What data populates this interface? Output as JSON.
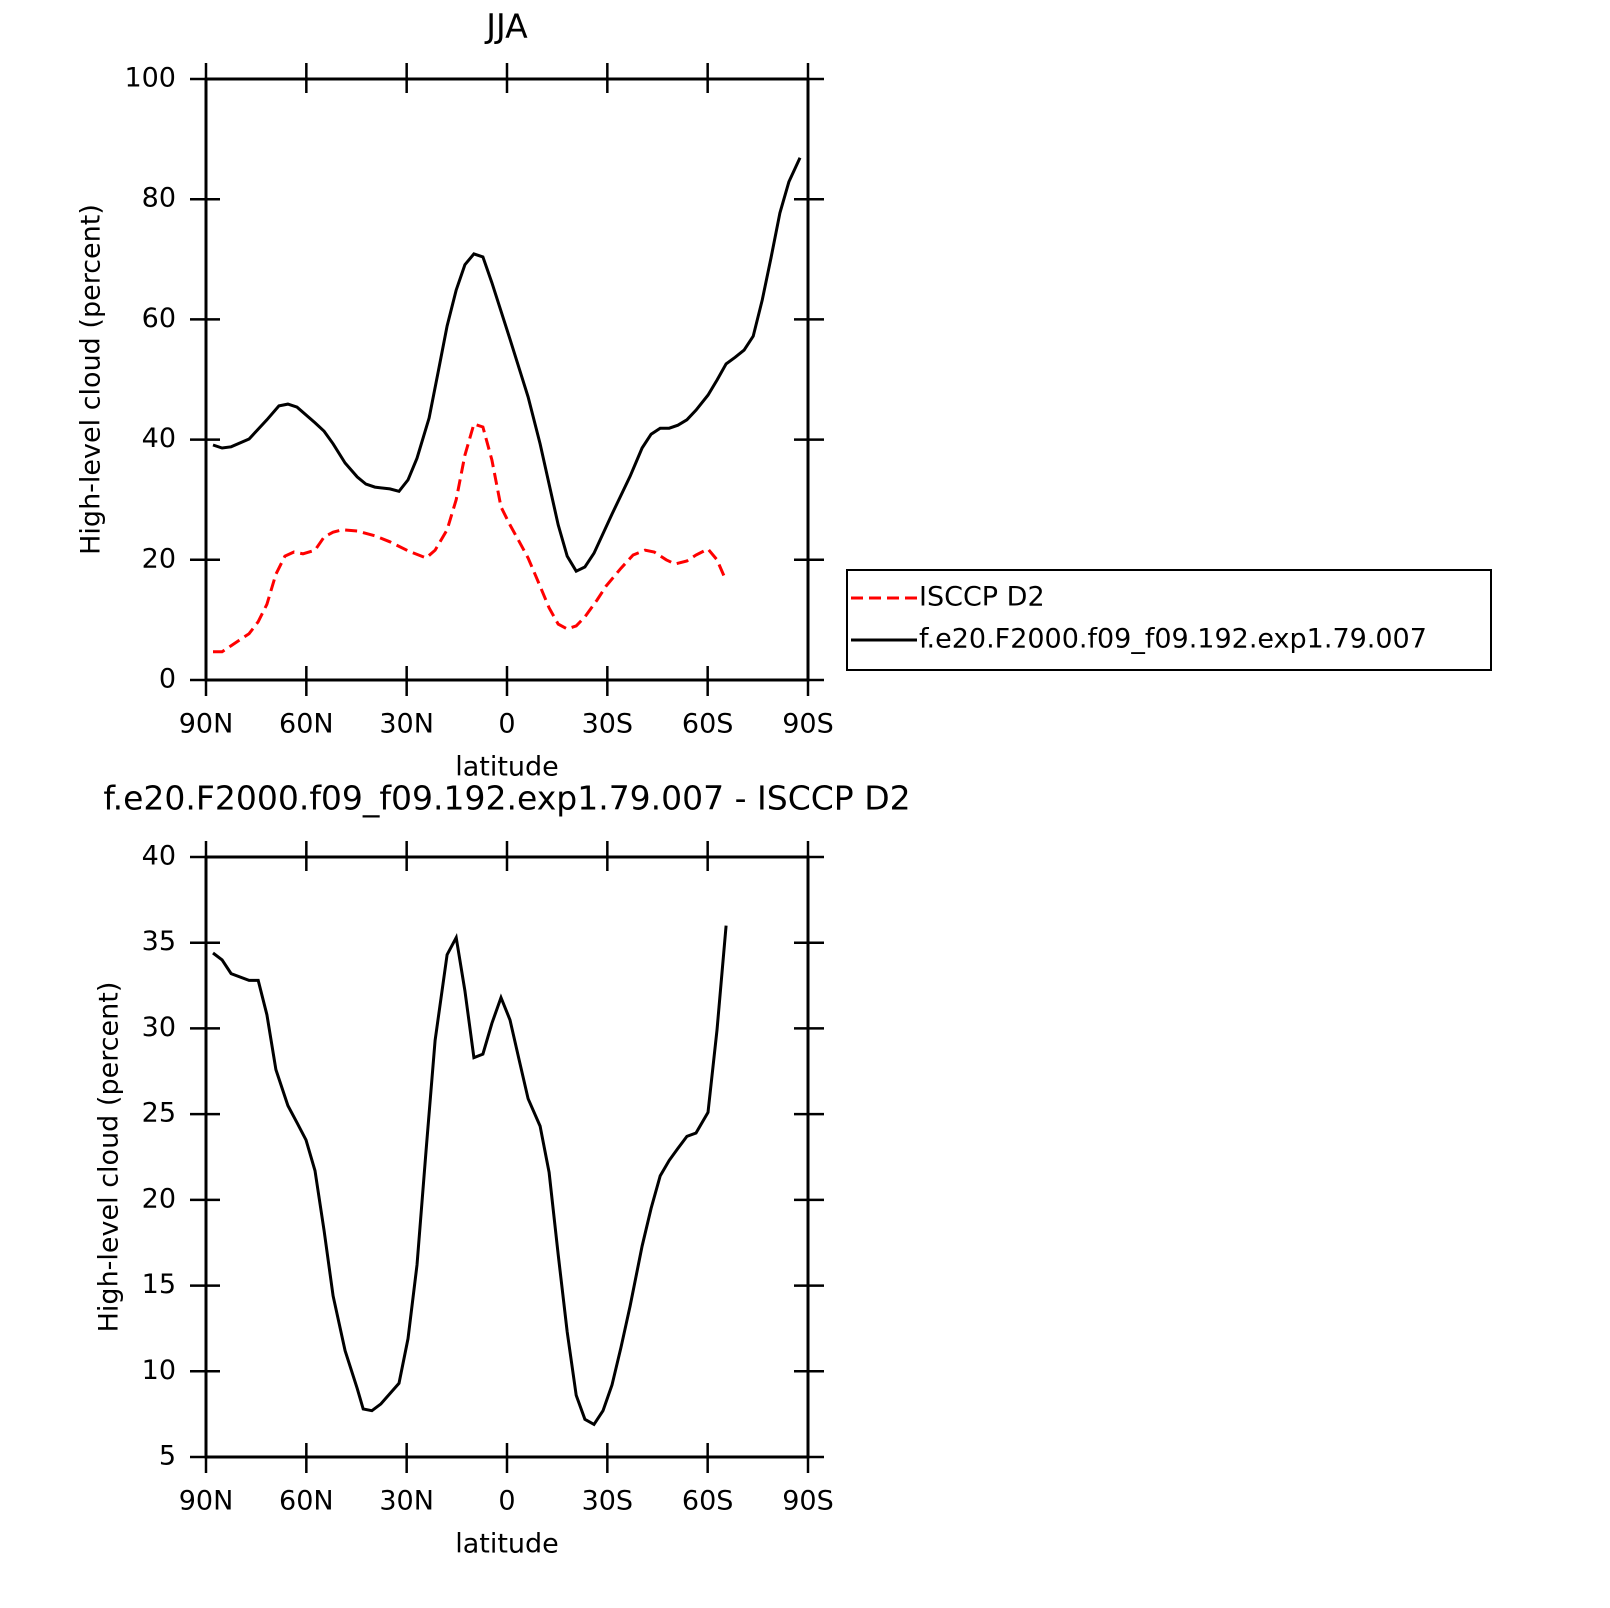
{
  "chart_data": [
    {
      "type": "line",
      "title": "JJA",
      "xlabel": "latitude",
      "ylabel": "High-level cloud (percent)",
      "xlim": [
        90,
        -90
      ],
      "xticks": [
        {
          "value": 90,
          "label": "90N"
        },
        {
          "value": 60,
          "label": "60N"
        },
        {
          "value": 30,
          "label": "30N"
        },
        0,
        {
          "value": -30,
          "label": "30S"
        },
        {
          "value": -60,
          "label": "60S"
        },
        {
          "value": -90,
          "label": "90S"
        }
      ],
      "ylim": [
        0,
        100
      ],
      "yticks": [
        0,
        20,
        40,
        60,
        80,
        100
      ],
      "legend": "right",
      "series": [
        {
          "name": "ISCCP D2",
          "color": "#ff0000",
          "linestyle": "dashed",
          "x": [
            87.9,
            85.2,
            82.5,
            79.8,
            77.1,
            74.4,
            71.8,
            69.1,
            66.4,
            63.7,
            61.0,
            57.4,
            54.7,
            52.0,
            49.3,
            44.8,
            39.5,
            35.0,
            29.6,
            24.2,
            21.5,
            17.9,
            15.2,
            12.6,
            9.9,
            7.2,
            4.5,
            1.8,
            -0.9,
            -3.6,
            -6.3,
            -9.9,
            -12.6,
            -15.3,
            -18.0,
            -20.7,
            -23.3,
            -26.9,
            -29.6,
            -34.1,
            -37.7,
            -41.3,
            -44.0,
            -47.6,
            -50.2,
            -53.8,
            -56.5,
            -60.1,
            -62.8,
            -65.5
          ],
          "values": [
            4.7,
            4.7,
            5.7,
            6.7,
            7.7,
            9.7,
            12.6,
            17.6,
            20.6,
            21.3,
            21.0,
            21.6,
            23.8,
            24.6,
            25.0,
            24.8,
            24.0,
            23.0,
            21.5,
            20.3,
            21.6,
            25.0,
            30.0,
            37.4,
            42.6,
            42.1,
            36.6,
            28.8,
            25.8,
            23.1,
            20.3,
            15.6,
            12.0,
            9.3,
            8.5,
            9.0,
            10.5,
            13.3,
            15.6,
            18.6,
            20.8,
            21.6,
            21.3,
            20.0,
            19.3,
            19.8,
            20.8,
            21.8,
            20.0,
            16.5
          ]
        },
        {
          "name": "f.e20.F2000.f09_f09.192.exp1.79.007",
          "color": "#000000",
          "linestyle": "solid",
          "x": [
            87.9,
            85.2,
            82.5,
            77.1,
            71.8,
            68.2,
            65.5,
            62.8,
            57.4,
            54.7,
            52.0,
            48.4,
            44.8,
            42.2,
            39.5,
            35.0,
            32.3,
            29.6,
            26.9,
            23.3,
            20.6,
            17.9,
            15.2,
            12.6,
            9.9,
            7.2,
            4.5,
            -0.9,
            -6.3,
            -9.9,
            -15.3,
            -18.0,
            -20.7,
            -23.3,
            -26.0,
            -31.4,
            -36.8,
            -40.4,
            -43.1,
            -45.8,
            -48.5,
            -51.1,
            -53.8,
            -56.5,
            -60.1,
            -62.8,
            -65.5,
            -68.2,
            -70.9,
            -73.6,
            -76.3,
            -79.0,
            -81.6,
            -84.3,
            -87.6
          ],
          "values": [
            39.1,
            38.6,
            38.8,
            40.1,
            43.3,
            45.6,
            45.9,
            45.4,
            42.8,
            41.4,
            39.3,
            36.1,
            33.8,
            32.6,
            32.1,
            31.8,
            31.4,
            33.3,
            36.9,
            43.6,
            51.2,
            58.9,
            64.9,
            69.1,
            70.9,
            70.4,
            66.1,
            56.7,
            47.1,
            39.3,
            25.8,
            20.6,
            18.1,
            18.8,
            21.1,
            27.6,
            33.9,
            38.6,
            40.9,
            41.9,
            41.9,
            42.4,
            43.3,
            44.9,
            47.4,
            49.9,
            52.6,
            53.7,
            54.9,
            57.2,
            63.2,
            70.4,
            77.7,
            82.9,
            86.9
          ]
        }
      ]
    },
    {
      "type": "line",
      "title": "f.e20.F2000.f09_f09.192.exp1.79.007 - ISCCP D2",
      "xlabel": "latitude",
      "ylabel": "High-level cloud (percent)",
      "xlim": [
        90,
        -90
      ],
      "xticks": [
        {
          "value": 90,
          "label": "90N"
        },
        {
          "value": 60,
          "label": "60N"
        },
        {
          "value": 30,
          "label": "30N"
        },
        0,
        {
          "value": -30,
          "label": "30S"
        },
        {
          "value": -60,
          "label": "60S"
        },
        {
          "value": -90,
          "label": "90S"
        }
      ],
      "ylim": [
        5,
        40
      ],
      "yticks": [
        5,
        10,
        15,
        20,
        25,
        30,
        35,
        40
      ],
      "series": [
        {
          "color": "#000000",
          "linestyle": "solid",
          "x": [
            87.9,
            85.2,
            82.5,
            77.1,
            74.4,
            71.8,
            69.1,
            65.5,
            62.8,
            60.1,
            57.4,
            54.7,
            52.0,
            48.4,
            44.8,
            43.0,
            40.4,
            37.7,
            35.0,
            32.3,
            29.6,
            26.9,
            24.2,
            21.5,
            17.9,
            15.2,
            12.6,
            9.9,
            7.2,
            4.5,
            1.8,
            -0.9,
            -3.6,
            -6.3,
            -9.9,
            -12.6,
            -15.3,
            -18.0,
            -20.7,
            -23.3,
            -26.0,
            -28.7,
            -31.4,
            -34.1,
            -36.8,
            -40.4,
            -43.1,
            -45.8,
            -48.5,
            -51.1,
            -53.8,
            -56.5,
            -60.1,
            -62.8,
            -65.5
          ],
          "values": [
            34.4,
            34.0,
            33.2,
            32.8,
            32.8,
            30.8,
            27.6,
            25.5,
            24.5,
            23.5,
            21.7,
            18.2,
            14.4,
            11.2,
            9.0,
            7.8,
            7.7,
            8.1,
            8.7,
            9.3,
            11.9,
            16.2,
            22.9,
            29.3,
            34.3,
            35.3,
            32.2,
            28.3,
            28.5,
            30.3,
            31.8,
            30.5,
            28.2,
            25.9,
            24.3,
            21.6,
            16.8,
            12.3,
            8.6,
            7.2,
            6.9,
            7.7,
            9.2,
            11.4,
            13.8,
            17.3,
            19.5,
            21.4,
            22.3,
            23.0,
            23.7,
            23.9,
            25.1,
            29.9,
            36.0
          ]
        }
      ]
    }
  ]
}
